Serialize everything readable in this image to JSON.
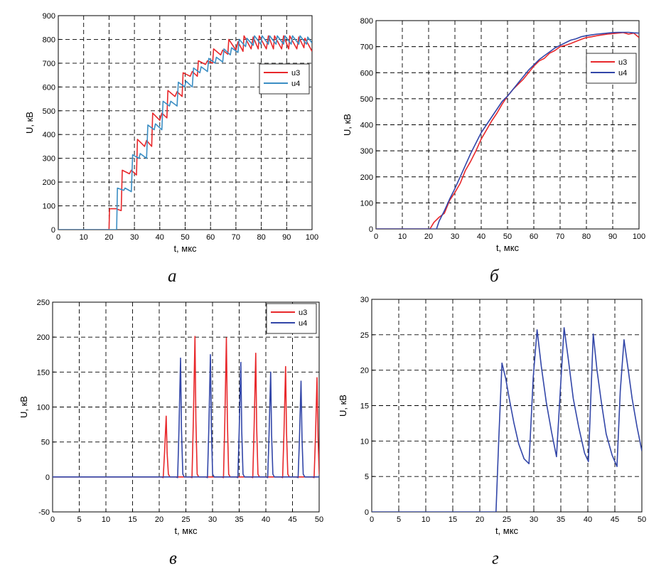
{
  "colors": {
    "red": "#e8282b",
    "blue_a": "#3b8ec4",
    "blue": "#3246a8",
    "grid": "#000000"
  },
  "panels": [
    {
      "caption": "а",
      "chart_data": {
        "type": "line",
        "xlabel": "t, мкс",
        "ylabel": "U, кВ",
        "xlim": [
          0,
          100
        ],
        "ylim": [
          0,
          900
        ],
        "xticks": [
          0,
          10,
          20,
          30,
          40,
          50,
          60,
          70,
          80,
          90,
          100
        ],
        "yticks": [
          0,
          100,
          200,
          300,
          400,
          500,
          600,
          700,
          800,
          900
        ],
        "grid": true,
        "legend": "top-right",
        "series": [
          {
            "name": "u3",
            "color": "#e8282b",
            "x": [
              0,
              20,
              20.2,
              23,
              23.5,
              24.8,
              25.2,
              28,
              28.8,
              30.8,
              31.2,
              34,
              34.8,
              36.8,
              37.2,
              40,
              40.8,
              42.8,
              43.2,
              46,
              46.8,
              48.8,
              49.2,
              52,
              52.8,
              54.8,
              55.2,
              58,
              58.8,
              60.8,
              61.2,
              64,
              64.8,
              66.8,
              67.2,
              70,
              70.8,
              72.8,
              73.2,
              76,
              76.8,
              78.8,
              79.2,
              82,
              82.8,
              84.8,
              85.2,
              88,
              88.8,
              90.8,
              91.2,
              94,
              94.8,
              96.8,
              97.2,
              100
            ],
            "y": [
              0,
              0,
              88,
              88,
              85,
              80,
              250,
              235,
              250,
              230,
              380,
              350,
              375,
              350,
              490,
              460,
              490,
              470,
              585,
              560,
              580,
              560,
              660,
              645,
              665,
              645,
              710,
              695,
              710,
              700,
              760,
              735,
              755,
              738,
              800,
              755,
              790,
              750,
              815,
              760,
              810,
              760,
              815,
              760,
              815,
              760,
              815,
              760,
              815,
              760,
              815,
              760,
              810,
              765,
              805,
              750
            ]
          },
          {
            "name": "u4",
            "color": "#3b8ec4",
            "x": [
              0,
              23,
              23.3,
              25.8,
              26.3,
              28.8,
              29.3,
              31.8,
              32.3,
              34.8,
              35.3,
              37.8,
              38.3,
              40.8,
              41.3,
              43.8,
              44.3,
              46.8,
              47.3,
              49.8,
              50.3,
              52.8,
              53.3,
              55.8,
              56.3,
              58.8,
              59.3,
              61.8,
              62.3,
              64.8,
              65.3,
              67.8,
              68.3,
              70.8,
              71.3,
              73.8,
              74.3,
              76.8,
              77.3,
              79.8,
              80.3,
              82.8,
              83.3,
              85.8,
              86.3,
              88.8,
              89.3,
              91.8,
              92.3,
              94.8,
              95.3,
              97.8,
              98.3,
              100
            ],
            "y": [
              0,
              0,
              175,
              165,
              175,
              160,
              315,
              300,
              320,
              300,
              440,
              420,
              445,
              420,
              540,
              520,
              540,
              520,
              620,
              600,
              625,
              600,
              680,
              660,
              685,
              665,
              720,
              700,
              725,
              705,
              760,
              735,
              765,
              745,
              800,
              770,
              805,
              775,
              815,
              780,
              815,
              780,
              815,
              780,
              815,
              780,
              815,
              780,
              815,
              780,
              815,
              780,
              810,
              785
            ]
          }
        ]
      }
    },
    {
      "caption": "б",
      "chart_data": {
        "type": "line",
        "xlabel": "t, мкс",
        "ylabel": "U, кВ",
        "xlim": [
          0,
          100
        ],
        "ylim": [
          0,
          800
        ],
        "xticks": [
          0,
          10,
          20,
          30,
          40,
          50,
          60,
          70,
          80,
          90,
          100
        ],
        "yticks": [
          0,
          100,
          200,
          300,
          400,
          500,
          600,
          700,
          800
        ],
        "grid": true,
        "legend": "top-right",
        "series": [
          {
            "name": "u3",
            "color": "#e8282b",
            "x": [
              0,
              20.5,
              22,
              24,
              26,
              28,
              30,
              32,
              34,
              36,
              38,
              40,
              42,
              44,
              46,
              48,
              50,
              52,
              54,
              56,
              58,
              60,
              62,
              64,
              66,
              68,
              70,
              72,
              74,
              76,
              78,
              80,
              82,
              84,
              86,
              88,
              90,
              92,
              94,
              96,
              98,
              100
            ],
            "y": [
              0,
              0,
              25,
              45,
              60,
              110,
              140,
              175,
              225,
              260,
              300,
              345,
              380,
              415,
              445,
              480,
              510,
              535,
              555,
              575,
              600,
              625,
              645,
              655,
              675,
              685,
              700,
              705,
              712,
              720,
              728,
              735,
              738,
              742,
              745,
              748,
              750,
              752,
              754,
              748,
              752,
              735
            ]
          },
          {
            "name": "u4",
            "color": "#3246a8",
            "x": [
              0,
              23,
              24,
              26,
              28,
              30,
              32,
              34,
              36,
              38,
              40,
              42,
              44,
              46,
              48,
              50,
              52,
              54,
              56,
              58,
              60,
              62,
              64,
              66,
              68,
              70,
              72,
              74,
              76,
              78,
              80,
              82,
              84,
              86,
              88,
              90,
              92,
              94,
              96,
              98,
              100
            ],
            "y": [
              0,
              0,
              30,
              70,
              115,
              155,
              200,
              245,
              290,
              330,
              370,
              400,
              430,
              460,
              490,
              510,
              535,
              560,
              585,
              610,
              630,
              650,
              665,
              680,
              695,
              705,
              715,
              725,
              730,
              738,
              742,
              745,
              748,
              750,
              752,
              754,
              755,
              755,
              755,
              753,
              752
            ]
          }
        ]
      }
    },
    {
      "caption": "в",
      "chart_data": {
        "type": "line",
        "xlabel": "t, мкс",
        "ylabel": "U, кВ",
        "xlim": [
          0,
          50
        ],
        "ylim": [
          -50,
          250
        ],
        "xticks": [
          0,
          5,
          10,
          15,
          20,
          25,
          30,
          35,
          40,
          45,
          50
        ],
        "yticks": [
          -50,
          0,
          50,
          100,
          150,
          200,
          250
        ],
        "grid": true,
        "legend": "top-right",
        "series": [
          {
            "name": "u3",
            "color": "#e8282b",
            "peaks": [
              [
                21.3,
                87
              ],
              [
                26.7,
                201
              ],
              [
                32.6,
                199
              ],
              [
                38.1,
                177
              ],
              [
                43.7,
                158
              ],
              [
                49.6,
                142
              ]
            ]
          },
          {
            "name": "u4",
            "color": "#3246a8",
            "peaks": [
              [
                24.0,
                170
              ],
              [
                29.6,
                175
              ],
              [
                35.3,
                164
              ],
              [
                40.9,
                150
              ],
              [
                46.6,
                137
              ]
            ]
          }
        ]
      }
    },
    {
      "caption": "г",
      "chart_data": {
        "type": "line",
        "xlabel": "t, мкс",
        "ylabel": "U, кВ",
        "xlim": [
          0,
          50
        ],
        "ylim": [
          0,
          30
        ],
        "xticks": [
          0,
          5,
          10,
          15,
          20,
          25,
          30,
          35,
          40,
          45,
          50
        ],
        "yticks": [
          0,
          5,
          10,
          15,
          20,
          25,
          30
        ],
        "grid": true,
        "series": [
          {
            "color": "#3246a8",
            "x": [
              0,
              23,
              23.5,
              24.1,
              24.8,
              25.5,
              26.3,
              27.2,
              28.2,
              29.1,
              29.9,
              30.6,
              31.4,
              32.3,
              33.3,
              34.2,
              34.9,
              35.6,
              36.4,
              37.3,
              38.3,
              39.4,
              40.1,
              41.0,
              41.7,
              42.5,
              43.4,
              44.5,
              45.4,
              46.0,
              46.7,
              47.4,
              48.2,
              49.1,
              50
            ],
            "y": [
              0,
              0,
              10,
              21,
              18.8,
              15.8,
              12.6,
              9.6,
              7.5,
              6.8,
              19,
              25.7,
              20.5,
              15.5,
              11.2,
              7.8,
              17,
              26,
              21.5,
              16,
              12,
              8.3,
              7.1,
              25.1,
              20,
              15.5,
              11,
              8,
              6.4,
              17,
              24.3,
              20.5,
              16,
              12,
              8.6
            ]
          }
        ]
      }
    }
  ]
}
